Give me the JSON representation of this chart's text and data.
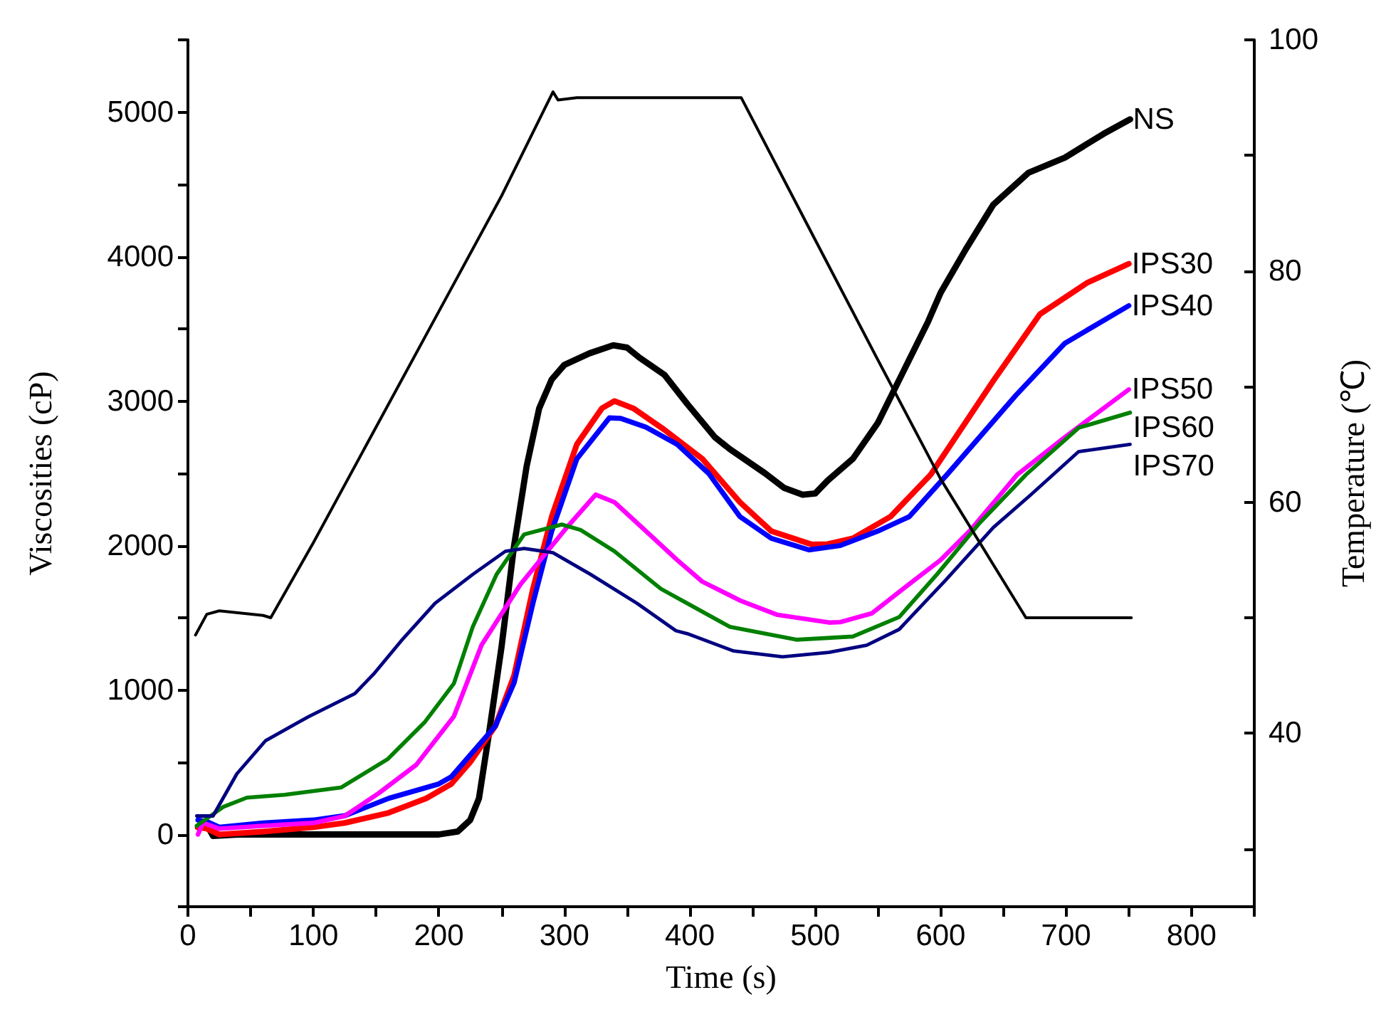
{
  "chart_data": {
    "type": "line",
    "xlabel": "Time (s)",
    "ylabel": "Viscosities (cP)",
    "y2label": "Temperature (℃)",
    "xlim": [
      0,
      850
    ],
    "xticks": [
      0,
      {
        "value": 50,
        "label": null
      },
      100,
      {
        "value": 150,
        "label": null
      },
      200,
      {
        "value": 250,
        "label": null
      },
      300,
      {
        "value": 350,
        "label": null
      },
      400,
      {
        "value": 450,
        "label": null
      },
      500,
      {
        "value": 550,
        "label": null
      },
      600,
      {
        "value": 650,
        "label": null
      },
      700,
      {
        "value": 750,
        "label": null
      },
      800,
      {
        "value": 850,
        "label": null
      }
    ],
    "ylim": [
      -500,
      5500
    ],
    "yticks": [
      {
        "value": -500,
        "label": null
      },
      0,
      {
        "value": 500,
        "label": null
      },
      1000,
      {
        "value": 1500,
        "label": null
      },
      2000,
      {
        "value": 2500,
        "label": null
      },
      3000,
      {
        "value": 3500,
        "label": null
      },
      4000,
      {
        "value": 4500,
        "label": null
      },
      5000,
      {
        "value": 5500,
        "label": null
      }
    ],
    "y2lim": [
      25,
      100
    ],
    "y2ticks": [
      {
        "value": 30,
        "label": null
      },
      40,
      {
        "value": 50,
        "label": null
      },
      60,
      {
        "value": 70,
        "label": null
      },
      80,
      {
        "value": 90,
        "label": null
      },
      100
    ],
    "legend": false,
    "grid": false,
    "marker": "none",
    "line_style": "solid",
    "series": [
      {
        "name": "NS",
        "color": "#000000",
        "x": [
          8,
          15,
          20,
          40,
          100,
          200,
          215,
          225,
          232,
          240,
          250,
          260,
          270,
          280,
          290,
          300,
          320,
          339,
          350,
          360,
          380,
          398,
          420,
          432,
          460,
          475,
          490,
          500,
          510,
          530,
          550,
          570,
          590,
          600,
          620,
          642,
          670,
          699,
          730,
          751
        ],
        "values": [
          50,
          70,
          -10,
          0,
          0,
          0,
          20,
          100,
          250,
          700,
          1300,
          2000,
          2550,
          2950,
          3150,
          3250,
          3330,
          3386,
          3370,
          3300,
          3180,
          2980,
          2750,
          2667,
          2500,
          2400,
          2352,
          2360,
          2450,
          2600,
          2850,
          3200,
          3550,
          3750,
          4050,
          4360,
          4580,
          4685,
          4850,
          4950
        ]
      },
      {
        "name": "IPS30",
        "color": "#ff0000",
        "x": [
          8,
          15,
          25,
          60,
          100,
          125,
          160,
          190,
          210,
          225,
          245,
          260,
          275,
          290,
          310,
          330,
          340,
          355,
          380,
          410,
          440,
          465,
          497,
          510,
          530,
          560,
          592,
          642,
          679,
          717,
          750
        ],
        "values": [
          50,
          40,
          0,
          20,
          50,
          80,
          150,
          250,
          350,
          500,
          750,
          1100,
          1700,
          2200,
          2700,
          2950,
          3000,
          2950,
          2800,
          2600,
          2300,
          2100,
          2008,
          2010,
          2050,
          2200,
          2490,
          3140,
          3600,
          3820,
          3950
        ]
      },
      {
        "name": "IPS40",
        "color": "#0000ff",
        "x": [
          8,
          15,
          25,
          60,
          100,
          125,
          160,
          200,
          210,
          225,
          245,
          260,
          275,
          290,
          310,
          336,
          345,
          365,
          390,
          415,
          440,
          465,
          495,
          520,
          550,
          575,
          605,
          660,
          699,
          750
        ],
        "values": [
          100,
          90,
          50,
          80,
          100,
          130,
          250,
          350,
          400,
          550,
          750,
          1050,
          1600,
          2100,
          2600,
          2884,
          2880,
          2820,
          2700,
          2500,
          2200,
          2050,
          1970,
          2000,
          2100,
          2200,
          2490,
          3040,
          3400,
          3660
        ]
      },
      {
        "name": "IPS50",
        "color": "#ff00ff",
        "x": [
          8,
          12,
          25,
          60,
          100,
          125,
          152,
          182,
          212,
          234,
          265,
          302,
          325,
          340,
          365,
          390,
          410,
          440,
          470,
          511,
          520,
          545,
          570,
          600,
          623,
          661,
          699,
          750
        ],
        "values": [
          0,
          80,
          40,
          60,
          80,
          128,
          285,
          482,
          817,
          1310,
          1730,
          2125,
          2352,
          2300,
          2100,
          1900,
          1750,
          1620,
          1520,
          1467,
          1470,
          1530,
          1700,
          1900,
          2100,
          2490,
          2750,
          3080
        ]
      },
      {
        "name": "IPS60",
        "color": "#008000",
        "x": [
          7,
          28,
          47,
          77,
          122,
          159,
          189,
          212,
          227,
          246,
          268,
          298,
          313,
          340,
          377,
          398,
          432,
          485,
          530,
          567,
          597,
          631,
          668,
          710,
          751
        ],
        "values": [
          60,
          190,
          255,
          275,
          325,
          520,
          780,
          1045,
          1437,
          1800,
          2077,
          2145,
          2108,
          1960,
          1700,
          1600,
          1437,
          1348,
          1370,
          1505,
          1800,
          2155,
          2490,
          2815,
          2920
        ]
      },
      {
        "name": "IPS70",
        "color": "#000080",
        "x": [
          7,
          20,
          39,
          62,
          96,
          133,
          148,
          170,
          197,
          227,
          253,
          268,
          291,
          321,
          358,
          389,
          398,
          435,
          474,
          511,
          541,
          567,
          604,
          642,
          672,
          710,
          751
        ],
        "values": [
          128,
          128,
          420,
          650,
          815,
          975,
          1110,
          1340,
          1600,
          1800,
          1960,
          1980,
          1950,
          1800,
          1600,
          1410,
          1390,
          1270,
          1230,
          1260,
          1310,
          1420,
          1760,
          2125,
          2352,
          2650,
          2700
        ]
      },
      {
        "axis": "y2",
        "color": "#000000",
        "x": [
          6,
          15,
          25,
          60,
          66,
          100,
          150,
          200,
          250,
          291,
          295,
          310,
          400,
          441,
          500,
          550,
          600,
          668,
          752
        ],
        "values": [
          48.5,
          50.3,
          50.6,
          50.2,
          50,
          56.5,
          66.5,
          76.5,
          86.5,
          95.5,
          94.8,
          95,
          95,
          95,
          82.7,
          72.3,
          62,
          50,
          50
        ]
      }
    ]
  }
}
